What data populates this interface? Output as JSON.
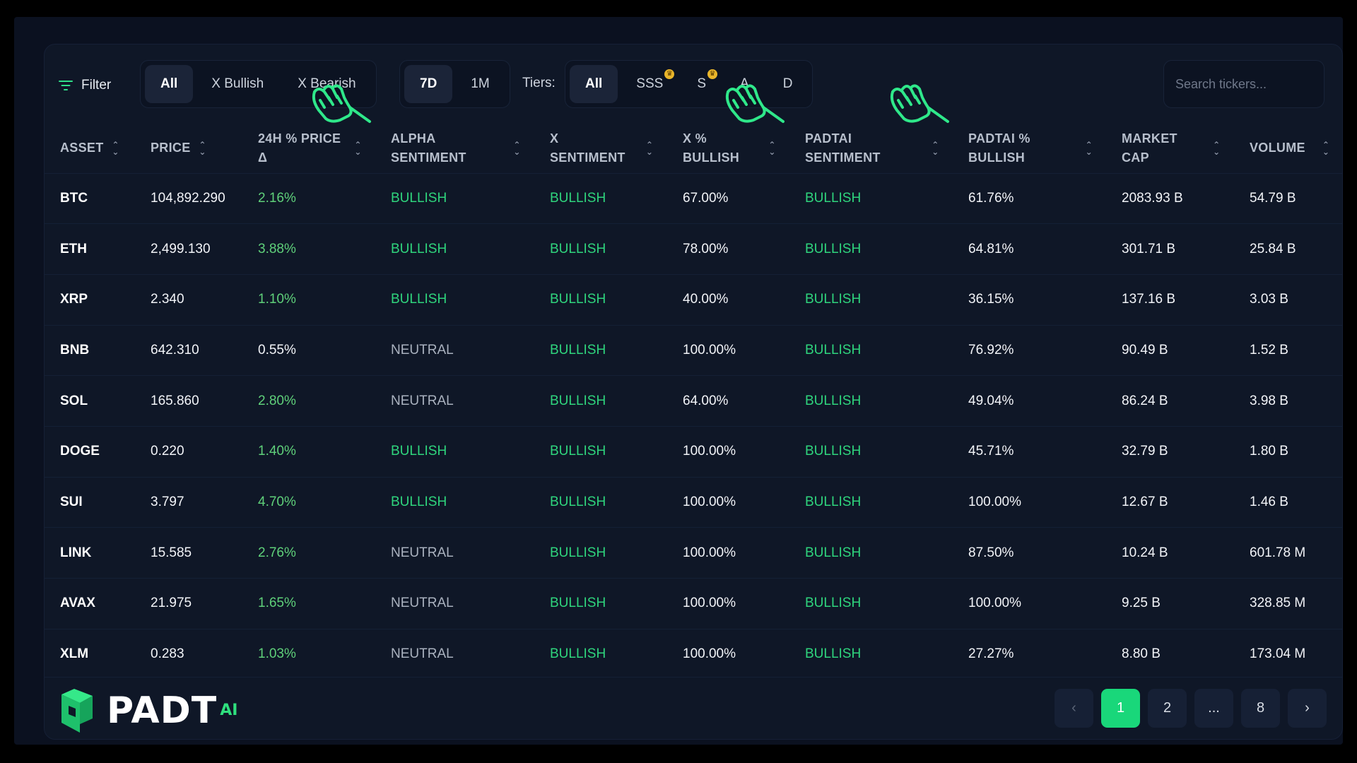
{
  "toolbar": {
    "filter_label": "Filter",
    "sentiment_options": [
      "All",
      "X Bullish",
      "X Bearish"
    ],
    "period_options": [
      "7D",
      "1M"
    ],
    "tiers_label": "Tiers:",
    "tier_options": [
      "All",
      "SSS",
      "S",
      "A",
      "D"
    ],
    "search_placeholder": "Search tickers..."
  },
  "table": {
    "columns": [
      "ASSET",
      "PRICE",
      "24H % PRICE Δ",
      "ALPHA SENTIMENT",
      "X SENTIMENT",
      "X % BULLISH",
      "PADTAI SENTIMENT",
      "PADTAI % BULLISH",
      "MARKET CAP",
      "VOLUME"
    ],
    "rows": [
      [
        "BTC",
        "104,892.290",
        "2.16%",
        "BULLISH",
        "BULLISH",
        "67.00%",
        "BULLISH",
        "61.76%",
        "2083.93 B",
        "54.79 B"
      ],
      [
        "ETH",
        "2,499.130",
        "3.88%",
        "BULLISH",
        "BULLISH",
        "78.00%",
        "BULLISH",
        "64.81%",
        "301.71 B",
        "25.84 B"
      ],
      [
        "XRP",
        "2.340",
        "1.10%",
        "BULLISH",
        "BULLISH",
        "40.00%",
        "BULLISH",
        "36.15%",
        "137.16 B",
        "3.03 B"
      ],
      [
        "BNB",
        "642.310",
        "0.55%",
        "NEUTRAL",
        "BULLISH",
        "100.00%",
        "BULLISH",
        "76.92%",
        "90.49 B",
        "1.52 B"
      ],
      [
        "SOL",
        "165.860",
        "2.80%",
        "NEUTRAL",
        "BULLISH",
        "64.00%",
        "BULLISH",
        "49.04%",
        "86.24 B",
        "3.98 B"
      ],
      [
        "DOGE",
        "0.220",
        "1.40%",
        "BULLISH",
        "BULLISH",
        "100.00%",
        "BULLISH",
        "45.71%",
        "32.79 B",
        "1.80 B"
      ],
      [
        "SUI",
        "3.797",
        "4.70%",
        "BULLISH",
        "BULLISH",
        "100.00%",
        "BULLISH",
        "100.00%",
        "12.67 B",
        "1.46 B"
      ],
      [
        "LINK",
        "15.585",
        "2.76%",
        "NEUTRAL",
        "BULLISH",
        "100.00%",
        "BULLISH",
        "87.50%",
        "10.24 B",
        "601.78 M"
      ],
      [
        "AVAX",
        "21.975",
        "1.65%",
        "NEUTRAL",
        "BULLISH",
        "100.00%",
        "BULLISH",
        "100.00%",
        "9.25 B",
        "328.85 M"
      ],
      [
        "XLM",
        "0.283",
        "1.03%",
        "NEUTRAL",
        "BULLISH",
        "100.00%",
        "BULLISH",
        "27.27%",
        "8.80 B",
        "173.04 M"
      ]
    ]
  },
  "footer": {
    "logo_text": "PADT",
    "logo_suffix": "AI",
    "pages": [
      "1",
      "2",
      "...",
      "8"
    ],
    "active_page": "1"
  },
  "colors": {
    "accent": "#19d77a",
    "bullish": "#2fd57d",
    "neutral": "#aab2bf",
    "background": "#0f1727"
  },
  "icons": [
    "filter-icon",
    "sort-icon",
    "crown-icon",
    "chevron-left-icon",
    "chevron-right-icon",
    "padtai-logo-icon",
    "pointing-hand-icon"
  ]
}
